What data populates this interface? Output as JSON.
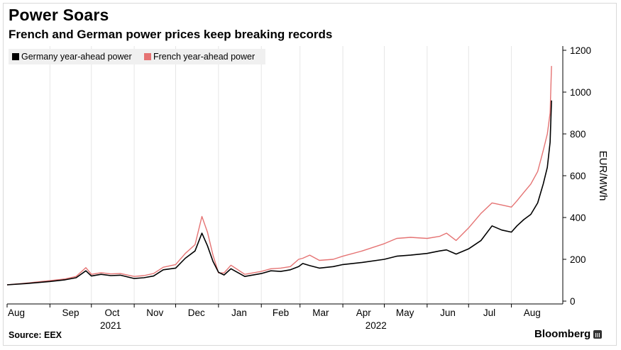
{
  "header": {
    "title": "Power Soars",
    "subtitle": "French and German power prices keep breaking records"
  },
  "footer": {
    "source": "Source: EEX",
    "brand": "Bloomberg"
  },
  "colors": {
    "germany": "#000000",
    "france": "#e57373",
    "grid": "#e6e6e6",
    "legend_bg": "#f0f0f0"
  },
  "chart_data": {
    "type": "line",
    "title": "Power Soars",
    "subtitle": "French and German power prices keep breaking records",
    "ylabel": "EUR/MWh",
    "ylim": [
      0,
      1200
    ],
    "yticks": [
      0,
      200,
      400,
      600,
      800,
      1000,
      1200
    ],
    "y_axis_side": "right",
    "grid": "vertical",
    "legend_placement": "top-left",
    "x_tick_labels": [
      "Aug",
      "Sep",
      "Oct",
      "Nov",
      "Dec",
      "Jan",
      "Feb",
      "Mar",
      "Apr",
      "May",
      "Jun",
      "Jul",
      "Aug"
    ],
    "x_year_labels": [
      "2021",
      "2022"
    ],
    "x_start": "2021-08-01",
    "x_end": "2022-08-31",
    "series": [
      {
        "name": "Germany year-ahead power",
        "color": "#000000",
        "points": [
          [
            "2021-08-01",
            78
          ],
          [
            "2021-08-15",
            84
          ],
          [
            "2021-09-01",
            94
          ],
          [
            "2021-09-12",
            102
          ],
          [
            "2021-09-20",
            112
          ],
          [
            "2021-09-27",
            145
          ],
          [
            "2021-10-01",
            120
          ],
          [
            "2021-10-08",
            128
          ],
          [
            "2021-10-15",
            122
          ],
          [
            "2021-10-22",
            124
          ],
          [
            "2021-11-01",
            108
          ],
          [
            "2021-11-08",
            112
          ],
          [
            "2021-11-15",
            120
          ],
          [
            "2021-11-22",
            150
          ],
          [
            "2021-12-01",
            158
          ],
          [
            "2021-12-08",
            205
          ],
          [
            "2021-12-15",
            240
          ],
          [
            "2021-12-20",
            325
          ],
          [
            "2021-12-24",
            265
          ],
          [
            "2021-12-28",
            190
          ],
          [
            "2022-01-01",
            138
          ],
          [
            "2022-01-05",
            125
          ],
          [
            "2022-01-10",
            155
          ],
          [
            "2022-01-20",
            118
          ],
          [
            "2022-02-01",
            132
          ],
          [
            "2022-02-08",
            145
          ],
          [
            "2022-02-15",
            142
          ],
          [
            "2022-02-22",
            150
          ],
          [
            "2022-02-28",
            165
          ],
          [
            "2022-03-03",
            180
          ],
          [
            "2022-03-08",
            170
          ],
          [
            "2022-03-15",
            158
          ],
          [
            "2022-03-25",
            165
          ],
          [
            "2022-04-01",
            175
          ],
          [
            "2022-04-15",
            185
          ],
          [
            "2022-05-01",
            200
          ],
          [
            "2022-05-10",
            215
          ],
          [
            "2022-05-20",
            220
          ],
          [
            "2022-06-01",
            228
          ],
          [
            "2022-06-10",
            240
          ],
          [
            "2022-06-15",
            245
          ],
          [
            "2022-06-22",
            225
          ],
          [
            "2022-07-01",
            250
          ],
          [
            "2022-07-10",
            290
          ],
          [
            "2022-07-18",
            360
          ],
          [
            "2022-07-25",
            340
          ],
          [
            "2022-08-01",
            330
          ],
          [
            "2022-08-05",
            360
          ],
          [
            "2022-08-10",
            390
          ],
          [
            "2022-08-15",
            415
          ],
          [
            "2022-08-20",
            470
          ],
          [
            "2022-08-24",
            560
          ],
          [
            "2022-08-27",
            640
          ],
          [
            "2022-08-29",
            760
          ],
          [
            "2022-08-30",
            960
          ]
        ]
      },
      {
        "name": "French year-ahead power",
        "color": "#e57373",
        "points": [
          [
            "2021-08-01",
            78
          ],
          [
            "2021-08-15",
            86
          ],
          [
            "2021-09-01",
            98
          ],
          [
            "2021-09-12",
            106
          ],
          [
            "2021-09-20",
            118
          ],
          [
            "2021-09-27",
            160
          ],
          [
            "2021-10-01",
            128
          ],
          [
            "2021-10-08",
            136
          ],
          [
            "2021-10-15",
            130
          ],
          [
            "2021-10-22",
            132
          ],
          [
            "2021-11-01",
            118
          ],
          [
            "2021-11-08",
            122
          ],
          [
            "2021-11-15",
            132
          ],
          [
            "2021-11-22",
            162
          ],
          [
            "2021-12-01",
            175
          ],
          [
            "2021-12-08",
            228
          ],
          [
            "2021-12-15",
            270
          ],
          [
            "2021-12-20",
            405
          ],
          [
            "2021-12-24",
            330
          ],
          [
            "2021-12-28",
            220
          ],
          [
            "2022-01-01",
            135
          ],
          [
            "2022-01-05",
            135
          ],
          [
            "2022-01-10",
            172
          ],
          [
            "2022-01-20",
            128
          ],
          [
            "2022-02-01",
            142
          ],
          [
            "2022-02-08",
            155
          ],
          [
            "2022-02-15",
            158
          ],
          [
            "2022-02-22",
            165
          ],
          [
            "2022-02-28",
            200
          ],
          [
            "2022-03-03",
            205
          ],
          [
            "2022-03-08",
            220
          ],
          [
            "2022-03-15",
            195
          ],
          [
            "2022-03-25",
            200
          ],
          [
            "2022-04-01",
            215
          ],
          [
            "2022-04-15",
            240
          ],
          [
            "2022-05-01",
            275
          ],
          [
            "2022-05-10",
            300
          ],
          [
            "2022-05-20",
            305
          ],
          [
            "2022-06-01",
            300
          ],
          [
            "2022-06-10",
            310
          ],
          [
            "2022-06-15",
            325
          ],
          [
            "2022-06-22",
            290
          ],
          [
            "2022-07-01",
            350
          ],
          [
            "2022-07-10",
            420
          ],
          [
            "2022-07-18",
            470
          ],
          [
            "2022-07-25",
            460
          ],
          [
            "2022-08-01",
            450
          ],
          [
            "2022-08-05",
            480
          ],
          [
            "2022-08-10",
            520
          ],
          [
            "2022-08-15",
            560
          ],
          [
            "2022-08-20",
            620
          ],
          [
            "2022-08-24",
            720
          ],
          [
            "2022-08-27",
            800
          ],
          [
            "2022-08-29",
            900
          ],
          [
            "2022-08-30",
            1125
          ]
        ]
      }
    ]
  }
}
